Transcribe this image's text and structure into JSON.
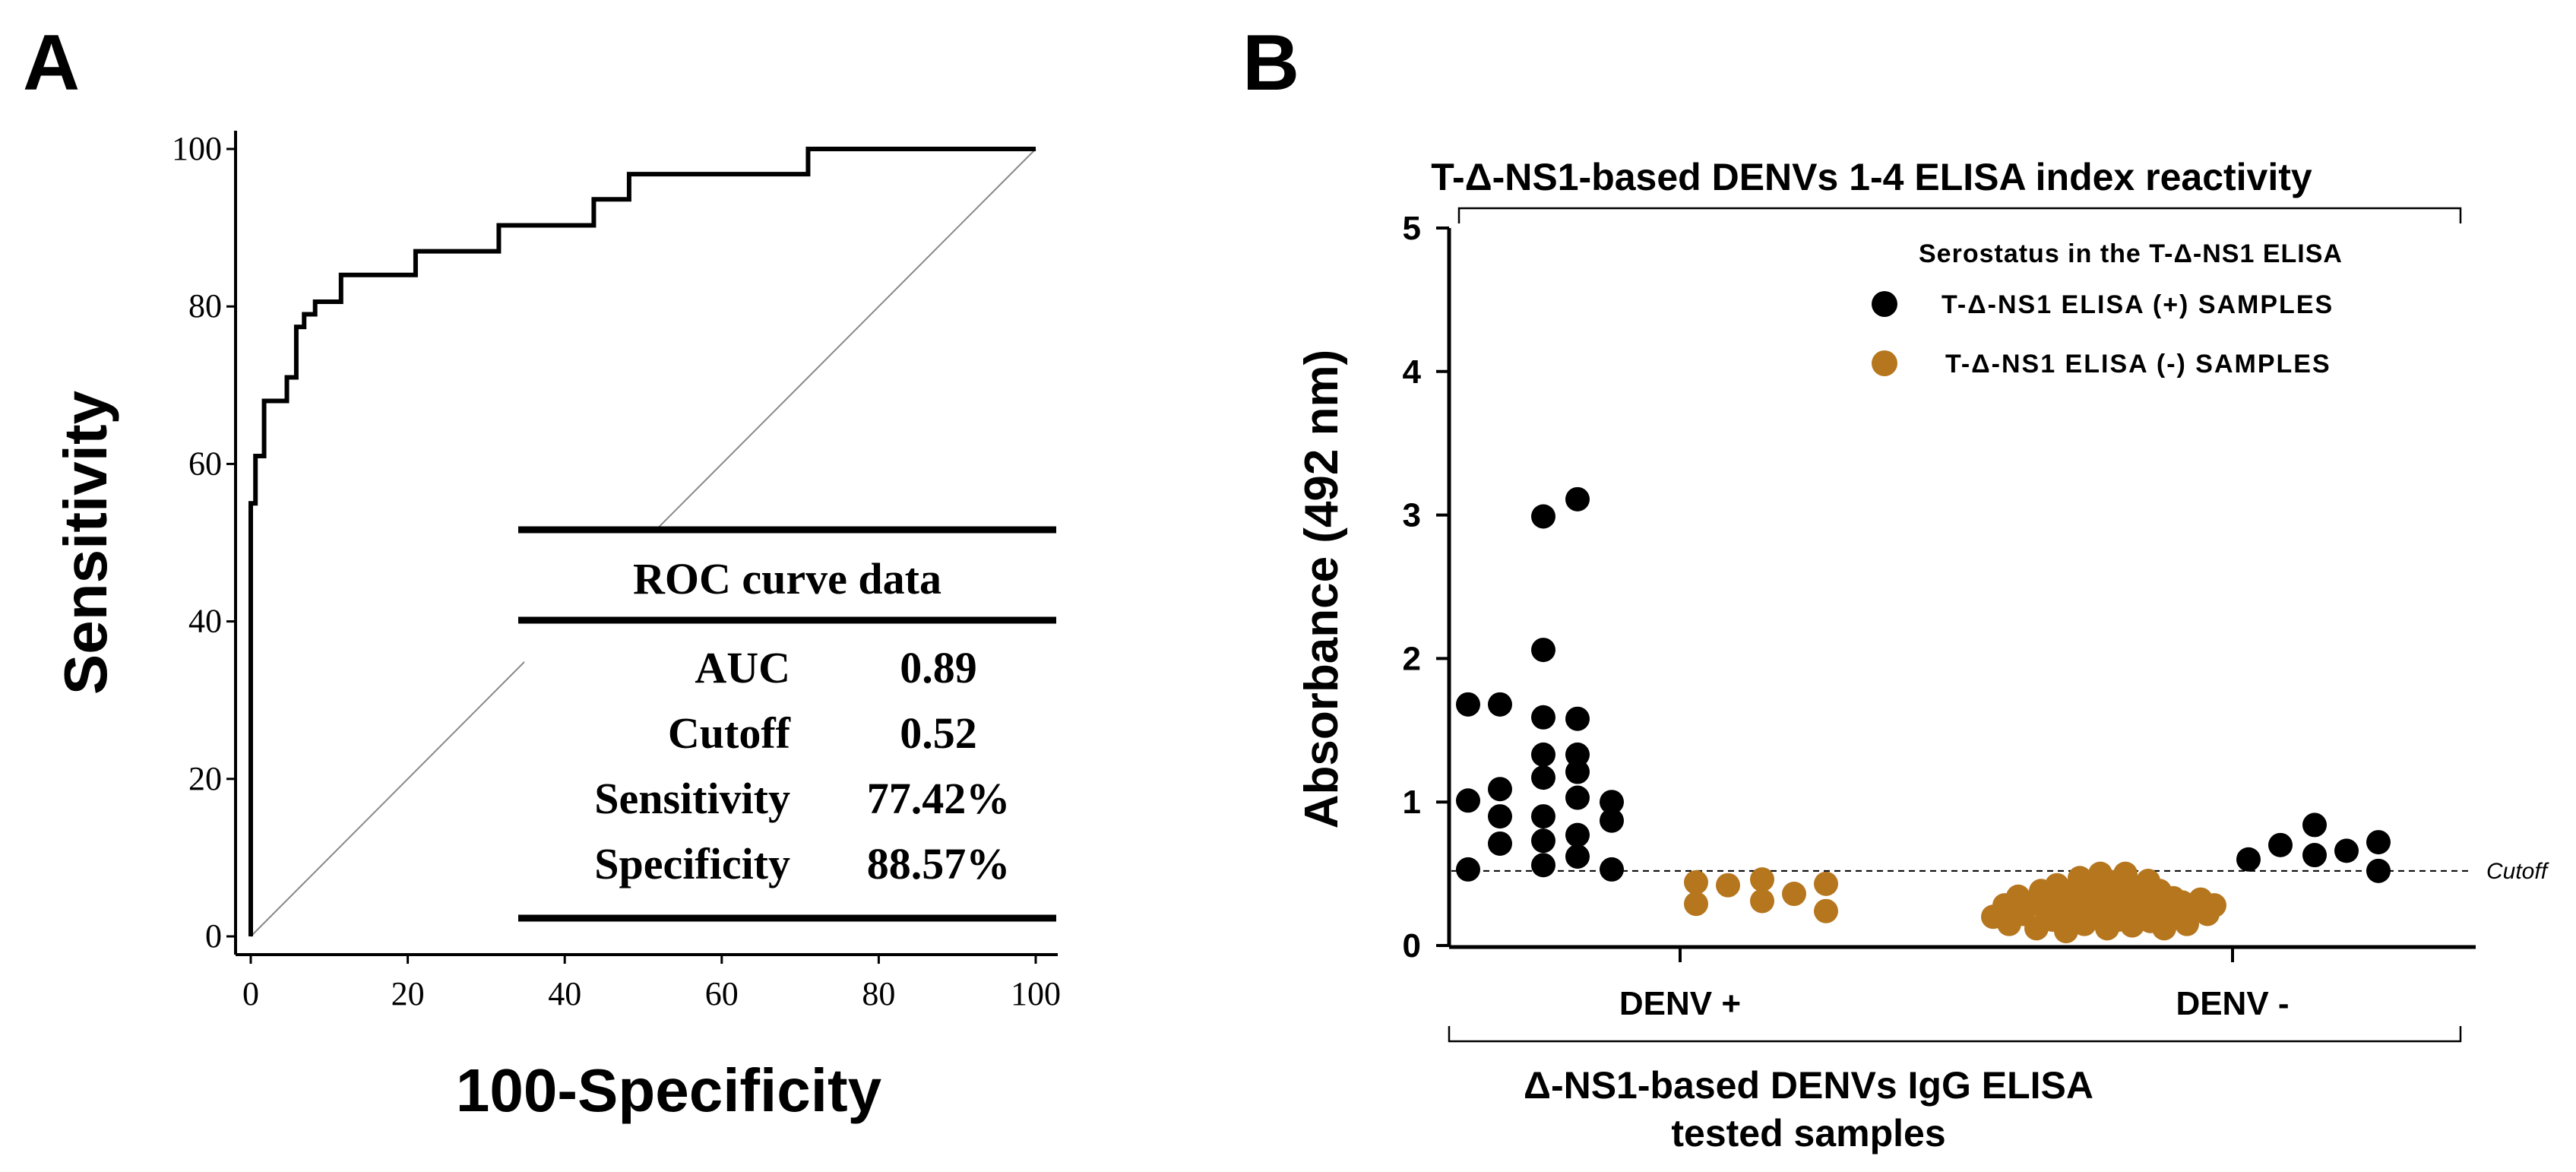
{
  "chart_data": [
    {
      "panel": "A",
      "type": "line",
      "xlabel": "100-Specificity",
      "ylabel": "Sensitivity",
      "xlim": [
        0,
        100
      ],
      "ylim": [
        0,
        100
      ],
      "xticks": [
        "0",
        "20",
        "40",
        "60",
        "80",
        "100"
      ],
      "yticks": [
        "0",
        "20",
        "40",
        "60",
        "80",
        "100"
      ],
      "series": [
        {
          "name": "ROC curve",
          "x": [
            0,
            0,
            0.6,
            0.6,
            1.7,
            1.7,
            4.6,
            4.6,
            5.8,
            5.8,
            6.8,
            6.8,
            8.2,
            8.2,
            11.5,
            11.5,
            21,
            21,
            31.6,
            31.6,
            43.7,
            43.7,
            48.2,
            48.2,
            71,
            71,
            100
          ],
          "y": [
            0,
            55,
            55,
            61,
            61,
            68,
            68,
            71,
            71,
            77.4,
            77.4,
            79,
            79,
            80.6,
            80.6,
            84,
            84,
            87,
            87,
            90.3,
            90.3,
            93.6,
            93.6,
            96.8,
            96.8,
            100,
            100
          ]
        },
        {
          "name": "Reference line",
          "x": [
            0,
            100
          ],
          "y": [
            0,
            100
          ]
        }
      ],
      "table": {
        "title": "ROC curve data",
        "rows": [
          {
            "label": "AUC",
            "value": "0.89"
          },
          {
            "label": "Cutoff",
            "value": "0.52"
          },
          {
            "label": "Sensitivity",
            "value": "77.42%"
          },
          {
            "label": "Specificity",
            "value": "88.57%"
          }
        ]
      }
    },
    {
      "panel": "B",
      "type": "scatter",
      "title": "T-Δ-NS1-based DENVs 1-4 ELISA index reactivity",
      "ylabel": "Absorbance (492 nm)",
      "xlabel_line1": "Δ-NS1-based DENVs IgG ELISA",
      "xlabel_line2": "tested samples",
      "ylim": [
        0,
        5
      ],
      "yticks": [
        "0",
        "1",
        "2",
        "3",
        "4",
        "5"
      ],
      "categories": [
        "DENV +",
        "DENV -"
      ],
      "cutoff": 0.52,
      "cutoff_label": "Cutoff",
      "legend_title": "Serostatus in the T-Δ-NS1 ELISA",
      "legend_position": "top-right",
      "series": [
        {
          "name": "T-Δ-NS1 ELISA (+) SAMPLES",
          "color": "#000000",
          "points": [
            {
              "group": "DENV +",
              "offset": -0.93,
              "y": 1.68
            },
            {
              "group": "DENV +",
              "offset": -0.93,
              "y": 1.01
            },
            {
              "group": "DENV +",
              "offset": -0.93,
              "y": 0.53
            },
            {
              "group": "DENV +",
              "offset": -0.79,
              "y": 1.68
            },
            {
              "group": "DENV +",
              "offset": -0.79,
              "y": 1.09
            },
            {
              "group": "DENV +",
              "offset": -0.79,
              "y": 0.9
            },
            {
              "group": "DENV +",
              "offset": -0.79,
              "y": 0.71
            },
            {
              "group": "DENV +",
              "offset": -0.6,
              "y": 2.99
            },
            {
              "group": "DENV +",
              "offset": -0.6,
              "y": 2.06
            },
            {
              "group": "DENV +",
              "offset": -0.6,
              "y": 1.59
            },
            {
              "group": "DENV +",
              "offset": -0.6,
              "y": 1.33
            },
            {
              "group": "DENV +",
              "offset": -0.6,
              "y": 1.17
            },
            {
              "group": "DENV +",
              "offset": -0.6,
              "y": 0.9
            },
            {
              "group": "DENV +",
              "offset": -0.6,
              "y": 0.73
            },
            {
              "group": "DENV +",
              "offset": -0.6,
              "y": 0.56
            },
            {
              "group": "DENV +",
              "offset": -0.45,
              "y": 3.11
            },
            {
              "group": "DENV +",
              "offset": -0.45,
              "y": 1.58
            },
            {
              "group": "DENV +",
              "offset": -0.45,
              "y": 1.33
            },
            {
              "group": "DENV +",
              "offset": -0.45,
              "y": 1.21
            },
            {
              "group": "DENV +",
              "offset": -0.45,
              "y": 1.03
            },
            {
              "group": "DENV +",
              "offset": -0.45,
              "y": 0.77
            },
            {
              "group": "DENV +",
              "offset": -0.45,
              "y": 0.62
            },
            {
              "group": "DENV +",
              "offset": -0.3,
              "y": 1.0
            },
            {
              "group": "DENV +",
              "offset": -0.3,
              "y": 0.87
            },
            {
              "group": "DENV +",
              "offset": -0.3,
              "y": 0.53
            },
            {
              "group": "DENV -",
              "offset": 0.07,
              "y": 0.6
            },
            {
              "group": "DENV -",
              "offset": 0.21,
              "y": 0.7
            },
            {
              "group": "DENV -",
              "offset": 0.36,
              "y": 0.84
            },
            {
              "group": "DENV -",
              "offset": 0.36,
              "y": 0.63
            },
            {
              "group": "DENV -",
              "offset": 0.5,
              "y": 0.66
            },
            {
              "group": "DENV -",
              "offset": 0.64,
              "y": 0.72
            },
            {
              "group": "DENV -",
              "offset": 0.64,
              "y": 0.52
            }
          ]
        },
        {
          "name": "T-Δ-NS1 ELISA (-) SAMPLES",
          "color": "#b5761e",
          "points": [
            {
              "group": "DENV +",
              "offset": 0.07,
              "y": 0.44
            },
            {
              "group": "DENV +",
              "offset": 0.07,
              "y": 0.29
            },
            {
              "group": "DENV +",
              "offset": 0.21,
              "y": 0.42
            },
            {
              "group": "DENV +",
              "offset": 0.36,
              "y": 0.46
            },
            {
              "group": "DENV +",
              "offset": 0.36,
              "y": 0.31
            },
            {
              "group": "DENV +",
              "offset": 0.5,
              "y": 0.36
            },
            {
              "group": "DENV +",
              "offset": 0.64,
              "y": 0.43
            },
            {
              "group": "DENV +",
              "offset": 0.64,
              "y": 0.24
            },
            {
              "group": "DENV -",
              "offset": -1.05,
              "y": 0.2
            },
            {
              "group": "DENV -",
              "offset": -1.0,
              "y": 0.28
            },
            {
              "group": "DENV -",
              "offset": -0.98,
              "y": 0.15
            },
            {
              "group": "DENV -",
              "offset": -0.94,
              "y": 0.34
            },
            {
              "group": "DENV -",
              "offset": -0.92,
              "y": 0.22
            },
            {
              "group": "DENV -",
              "offset": -0.88,
              "y": 0.3
            },
            {
              "group": "DENV -",
              "offset": -0.86,
              "y": 0.12
            },
            {
              "group": "DENV -",
              "offset": -0.84,
              "y": 0.38
            },
            {
              "group": "DENV -",
              "offset": -0.82,
              "y": 0.25
            },
            {
              "group": "DENV -",
              "offset": -0.79,
              "y": 0.18
            },
            {
              "group": "DENV -",
              "offset": -0.77,
              "y": 0.42
            },
            {
              "group": "DENV -",
              "offset": -0.75,
              "y": 0.3
            },
            {
              "group": "DENV -",
              "offset": -0.73,
              "y": 0.1
            },
            {
              "group": "DENV -",
              "offset": -0.71,
              "y": 0.22
            },
            {
              "group": "DENV -",
              "offset": -0.69,
              "y": 0.36
            },
            {
              "group": "DENV -",
              "offset": -0.67,
              "y": 0.47
            },
            {
              "group": "DENV -",
              "offset": -0.65,
              "y": 0.15
            },
            {
              "group": "DENV -",
              "offset": -0.64,
              "y": 0.28
            },
            {
              "group": "DENV -",
              "offset": -0.62,
              "y": 0.4
            },
            {
              "group": "DENV -",
              "offset": -0.6,
              "y": 0.2
            },
            {
              "group": "DENV -",
              "offset": -0.58,
              "y": 0.5
            },
            {
              "group": "DENV -",
              "offset": -0.57,
              "y": 0.33
            },
            {
              "group": "DENV -",
              "offset": -0.55,
              "y": 0.12
            },
            {
              "group": "DENV -",
              "offset": -0.53,
              "y": 0.25
            },
            {
              "group": "DENV -",
              "offset": -0.52,
              "y": 0.44
            },
            {
              "group": "DENV -",
              "offset": -0.5,
              "y": 0.18
            },
            {
              "group": "DENV -",
              "offset": -0.48,
              "y": 0.35
            },
            {
              "group": "DENV -",
              "offset": -0.47,
              "y": 0.5
            },
            {
              "group": "DENV -",
              "offset": -0.45,
              "y": 0.27
            },
            {
              "group": "DENV -",
              "offset": -0.44,
              "y": 0.14
            },
            {
              "group": "DENV -",
              "offset": -0.42,
              "y": 0.4
            },
            {
              "group": "DENV -",
              "offset": -0.41,
              "y": 0.22
            },
            {
              "group": "DENV -",
              "offset": -0.39,
              "y": 0.32
            },
            {
              "group": "DENV -",
              "offset": -0.37,
              "y": 0.45
            },
            {
              "group": "DENV -",
              "offset": -0.36,
              "y": 0.17
            },
            {
              "group": "DENV -",
              "offset": -0.34,
              "y": 0.28
            },
            {
              "group": "DENV -",
              "offset": -0.32,
              "y": 0.38
            },
            {
              "group": "DENV -",
              "offset": -0.3,
              "y": 0.12
            },
            {
              "group": "DENV -",
              "offset": -0.28,
              "y": 0.24
            },
            {
              "group": "DENV -",
              "offset": -0.26,
              "y": 0.33
            },
            {
              "group": "DENV -",
              "offset": -0.24,
              "y": 0.2
            },
            {
              "group": "DENV -",
              "offset": -0.22,
              "y": 0.3
            },
            {
              "group": "DENV -",
              "offset": -0.2,
              "y": 0.15
            },
            {
              "group": "DENV -",
              "offset": -0.17,
              "y": 0.26
            },
            {
              "group": "DENV -",
              "offset": -0.14,
              "y": 0.32
            },
            {
              "group": "DENV -",
              "offset": -0.11,
              "y": 0.22
            },
            {
              "group": "DENV -",
              "offset": -0.08,
              "y": 0.28
            }
          ]
        }
      ]
    }
  ],
  "panels": {
    "a_label": "A",
    "b_label": "B"
  }
}
